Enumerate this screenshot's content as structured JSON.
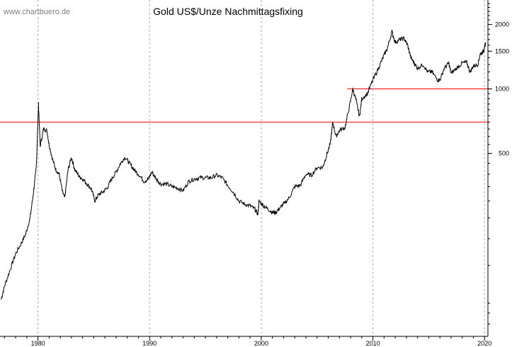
{
  "watermark": "www.chartbuero.de",
  "chart_data": {
    "type": "line",
    "title": "Gold US$/Unze Nachmittagsfixing",
    "xlabel": "",
    "ylabel": "",
    "y_scale": "log",
    "xlim": [
      1976.6,
      2020.3
    ],
    "ylim": [
      70,
      2600
    ],
    "x_ticks": [
      1980,
      1990,
      2000,
      2010,
      2020
    ],
    "y_ticks": [
      500,
      1000,
      1500,
      2000
    ],
    "grid": "vertical dashed at decade ticks",
    "line_color": "#000000",
    "reference_color": "#ff0000",
    "series": [
      {
        "values": [
          [
            1976.7,
            104
          ],
          [
            1977.0,
            120
          ],
          [
            1977.5,
            143
          ],
          [
            1978.0,
            170
          ],
          [
            1978.5,
            190
          ],
          [
            1978.9,
            210
          ],
          [
            1979.3,
            250
          ],
          [
            1979.6,
            330
          ],
          [
            1979.85,
            430
          ],
          [
            1980.05,
            850
          ],
          [
            1980.2,
            540
          ],
          [
            1980.5,
            650
          ],
          [
            1980.8,
            640
          ],
          [
            1981.0,
            550
          ],
          [
            1981.3,
            470
          ],
          [
            1981.6,
            420
          ],
          [
            1981.9,
            400
          ],
          [
            1982.2,
            330
          ],
          [
            1982.4,
            310
          ],
          [
            1982.7,
            420
          ],
          [
            1983.0,
            480
          ],
          [
            1983.3,
            420
          ],
          [
            1983.7,
            390
          ],
          [
            1984.0,
            380
          ],
          [
            1984.4,
            360
          ],
          [
            1984.8,
            340
          ],
          [
            1985.1,
            300
          ],
          [
            1985.4,
            320
          ],
          [
            1985.8,
            330
          ],
          [
            1986.2,
            345
          ],
          [
            1986.6,
            380
          ],
          [
            1987.0,
            410
          ],
          [
            1987.4,
            450
          ],
          [
            1987.8,
            480
          ],
          [
            1988.2,
            450
          ],
          [
            1988.6,
            420
          ],
          [
            1989.0,
            400
          ],
          [
            1989.5,
            370
          ],
          [
            1989.9,
            380
          ],
          [
            1990.2,
            410
          ],
          [
            1990.6,
            380
          ],
          [
            1991.0,
            360
          ],
          [
            1991.5,
            360
          ],
          [
            1992.0,
            350
          ],
          [
            1992.5,
            345
          ],
          [
            1993.0,
            335
          ],
          [
            1993.5,
            370
          ],
          [
            1994.0,
            380
          ],
          [
            1994.5,
            385
          ],
          [
            1995.0,
            385
          ],
          [
            1995.5,
            385
          ],
          [
            1996.0,
            395
          ],
          [
            1996.5,
            385
          ],
          [
            1997.0,
            355
          ],
          [
            1997.5,
            330
          ],
          [
            1998.0,
            300
          ],
          [
            1998.5,
            290
          ],
          [
            1999.0,
            285
          ],
          [
            1999.4,
            275
          ],
          [
            1999.7,
            260
          ],
          [
            1999.8,
            300
          ],
          [
            2000.2,
            285
          ],
          [
            2000.6,
            275
          ],
          [
            2001.0,
            265
          ],
          [
            2001.3,
            265
          ],
          [
            2001.7,
            280
          ],
          [
            2002.0,
            290
          ],
          [
            2002.5,
            310
          ],
          [
            2003.0,
            350
          ],
          [
            2003.5,
            355
          ],
          [
            2004.0,
            400
          ],
          [
            2004.5,
            395
          ],
          [
            2005.0,
            430
          ],
          [
            2005.5,
            430
          ],
          [
            2005.8,
            480
          ],
          [
            2006.2,
            560
          ],
          [
            2006.4,
            700
          ],
          [
            2006.7,
            600
          ],
          [
            2007.0,
            640
          ],
          [
            2007.5,
            660
          ],
          [
            2007.9,
            830
          ],
          [
            2008.2,
            1000
          ],
          [
            2008.5,
            880
          ],
          [
            2008.8,
            740
          ],
          [
            2009.0,
            900
          ],
          [
            2009.5,
            950
          ],
          [
            2010.0,
            1100
          ],
          [
            2010.5,
            1250
          ],
          [
            2010.9,
            1400
          ],
          [
            2011.3,
            1550
          ],
          [
            2011.7,
            1850
          ],
          [
            2012.0,
            1650
          ],
          [
            2012.4,
            1700
          ],
          [
            2012.8,
            1720
          ],
          [
            2013.1,
            1600
          ],
          [
            2013.4,
            1400
          ],
          [
            2013.7,
            1320
          ],
          [
            2014.0,
            1250
          ],
          [
            2014.5,
            1300
          ],
          [
            2014.9,
            1200
          ],
          [
            2015.3,
            1200
          ],
          [
            2015.8,
            1100
          ],
          [
            2016.0,
            1100
          ],
          [
            2016.4,
            1250
          ],
          [
            2016.8,
            1320
          ],
          [
            2017.0,
            1180
          ],
          [
            2017.5,
            1250
          ],
          [
            2018.0,
            1320
          ],
          [
            2018.4,
            1330
          ],
          [
            2018.7,
            1200
          ],
          [
            2019.0,
            1280
          ],
          [
            2019.4,
            1300
          ],
          [
            2019.6,
            1450
          ],
          [
            2019.9,
            1500
          ],
          [
            2020.0,
            1560
          ],
          [
            2020.1,
            1650
          ]
        ]
      }
    ],
    "reference_lines": [
      {
        "y": 700,
        "x_from": 1976.6,
        "x_to": 2020.3
      },
      {
        "y": 1000,
        "x_from": 2007.7,
        "x_to": 2020.3
      }
    ]
  }
}
